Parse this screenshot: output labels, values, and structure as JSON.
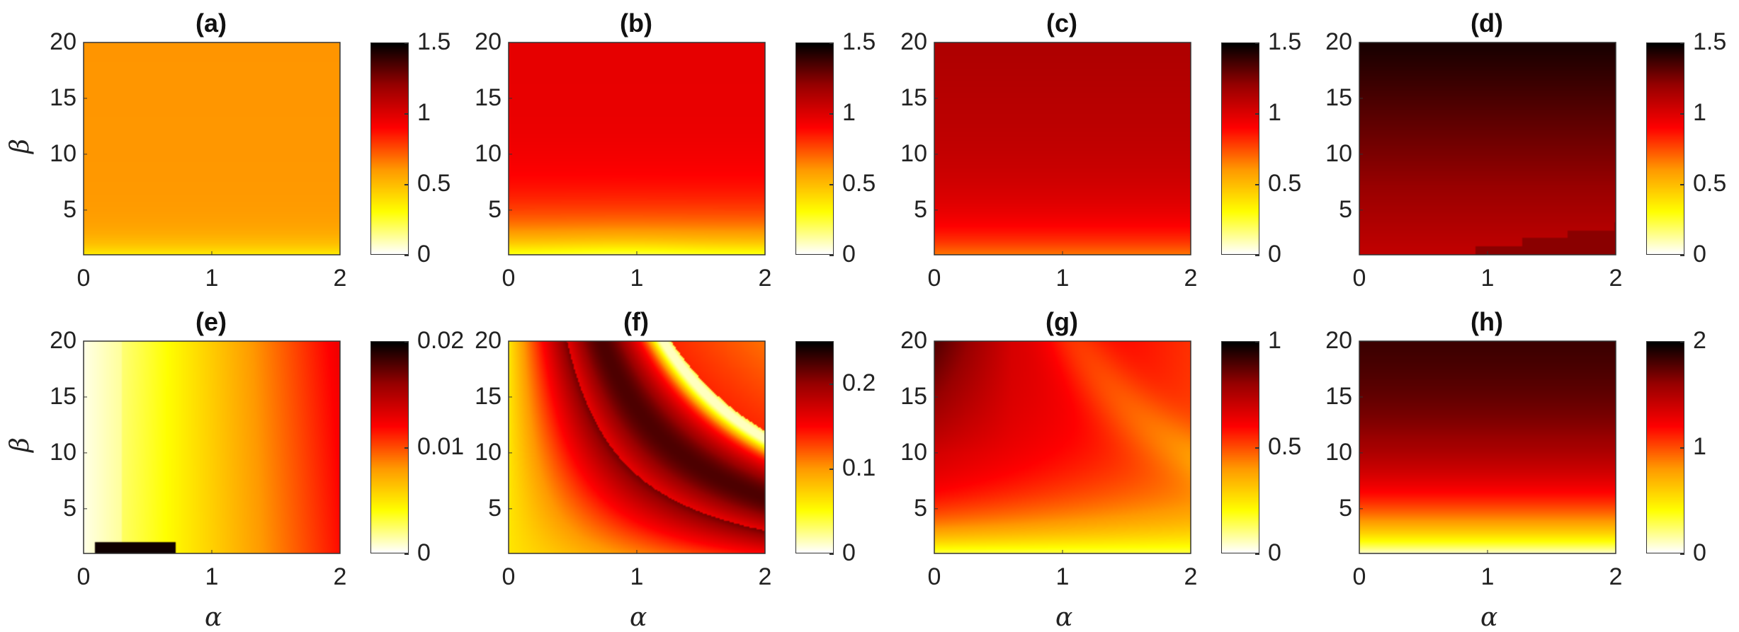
{
  "chart_data": [
    {
      "type": "heatmap",
      "title": "(a)",
      "xlabel": "",
      "ylabel": "β",
      "xlim": [
        0,
        2
      ],
      "ylim": [
        1,
        20
      ],
      "xticks": [
        "0",
        "1",
        "2"
      ],
      "yticks": [
        "5",
        "10",
        "15",
        "20"
      ],
      "colorbar": {
        "min": 0,
        "max": 1.5,
        "ticks": [
          "0",
          "0.5",
          "1",
          "1.5"
        ]
      },
      "field": {
        "kind": "a",
        "description_values": "≈0.6 over most of the domain, dropping toward ≈0.3 near β=1"
      }
    },
    {
      "type": "heatmap",
      "title": "(b)",
      "xlabel": "",
      "ylabel": "",
      "xlim": [
        0,
        2
      ],
      "ylim": [
        1,
        20
      ],
      "xticks": [
        "0",
        "1",
        "2"
      ],
      "yticks": [
        "5",
        "10",
        "15",
        "20"
      ],
      "colorbar": {
        "min": 0,
        "max": 1.5,
        "ticks": [
          "0",
          "0.5",
          "1",
          "1.5"
        ]
      },
      "field": {
        "kind": "b"
      }
    },
    {
      "type": "heatmap",
      "title": "(c)",
      "xlabel": "",
      "ylabel": "",
      "xlim": [
        0,
        2
      ],
      "ylim": [
        1,
        20
      ],
      "xticks": [
        "0",
        "1",
        "2"
      ],
      "yticks": [
        "5",
        "10",
        "15",
        "20"
      ],
      "colorbar": {
        "min": 0,
        "max": 1.5,
        "ticks": [
          "0",
          "0.5",
          "1",
          "1.5"
        ]
      },
      "field": {
        "kind": "c"
      }
    },
    {
      "type": "heatmap",
      "title": "(d)",
      "xlabel": "",
      "ylabel": "",
      "xlim": [
        0,
        2
      ],
      "ylim": [
        1,
        20
      ],
      "xticks": [
        "0",
        "1",
        "2"
      ],
      "yticks": [
        "5",
        "10",
        "15",
        "20"
      ],
      "colorbar": {
        "min": 0,
        "max": 1.5,
        "ticks": [
          "0",
          "0.5",
          "1",
          "1.5"
        ]
      },
      "field": {
        "kind": "d"
      }
    },
    {
      "type": "heatmap",
      "title": "(e)",
      "xlabel": "α",
      "ylabel": "β",
      "xlim": [
        0,
        2
      ],
      "ylim": [
        1,
        20
      ],
      "xticks": [
        "0",
        "1",
        "2"
      ],
      "yticks": [
        "5",
        "10",
        "15",
        "20"
      ],
      "colorbar": {
        "min": 0,
        "max": 0.02,
        "ticks": [
          "0",
          "0.01",
          "0.02"
        ]
      },
      "field": {
        "kind": "e"
      }
    },
    {
      "type": "heatmap",
      "title": "(f)",
      "xlabel": "α",
      "ylabel": "",
      "xlim": [
        0,
        2
      ],
      "ylim": [
        1,
        20
      ],
      "xticks": [
        "0",
        "1",
        "2"
      ],
      "yticks": [
        "5",
        "10",
        "15",
        "20"
      ],
      "colorbar": {
        "min": 0,
        "max": 0.25,
        "ticks": [
          "0",
          "0.1",
          "0.2"
        ]
      },
      "field": {
        "kind": "f"
      }
    },
    {
      "type": "heatmap",
      "title": "(g)",
      "xlabel": "α",
      "ylabel": "",
      "xlim": [
        0,
        2
      ],
      "ylim": [
        1,
        20
      ],
      "xticks": [
        "0",
        "1",
        "2"
      ],
      "yticks": [
        "5",
        "10",
        "15",
        "20"
      ],
      "colorbar": {
        "min": 0,
        "max": 1,
        "ticks": [
          "0",
          "0.5",
          "1"
        ]
      },
      "field": {
        "kind": "g"
      }
    },
    {
      "type": "heatmap",
      "title": "(h)",
      "xlabel": "α",
      "ylabel": "",
      "xlim": [
        0,
        2
      ],
      "ylim": [
        1,
        20
      ],
      "xticks": [
        "0",
        "1",
        "2"
      ],
      "yticks": [
        "5",
        "10",
        "15",
        "20"
      ],
      "colorbar": {
        "min": 0,
        "max": 2,
        "ticks": [
          "0",
          "1",
          "2"
        ]
      },
      "field": {
        "kind": "h"
      }
    }
  ],
  "colormap": [
    "#ffffff",
    "#ffff00",
    "#ff9900",
    "#ff0000",
    "#990000",
    "#000000"
  ]
}
